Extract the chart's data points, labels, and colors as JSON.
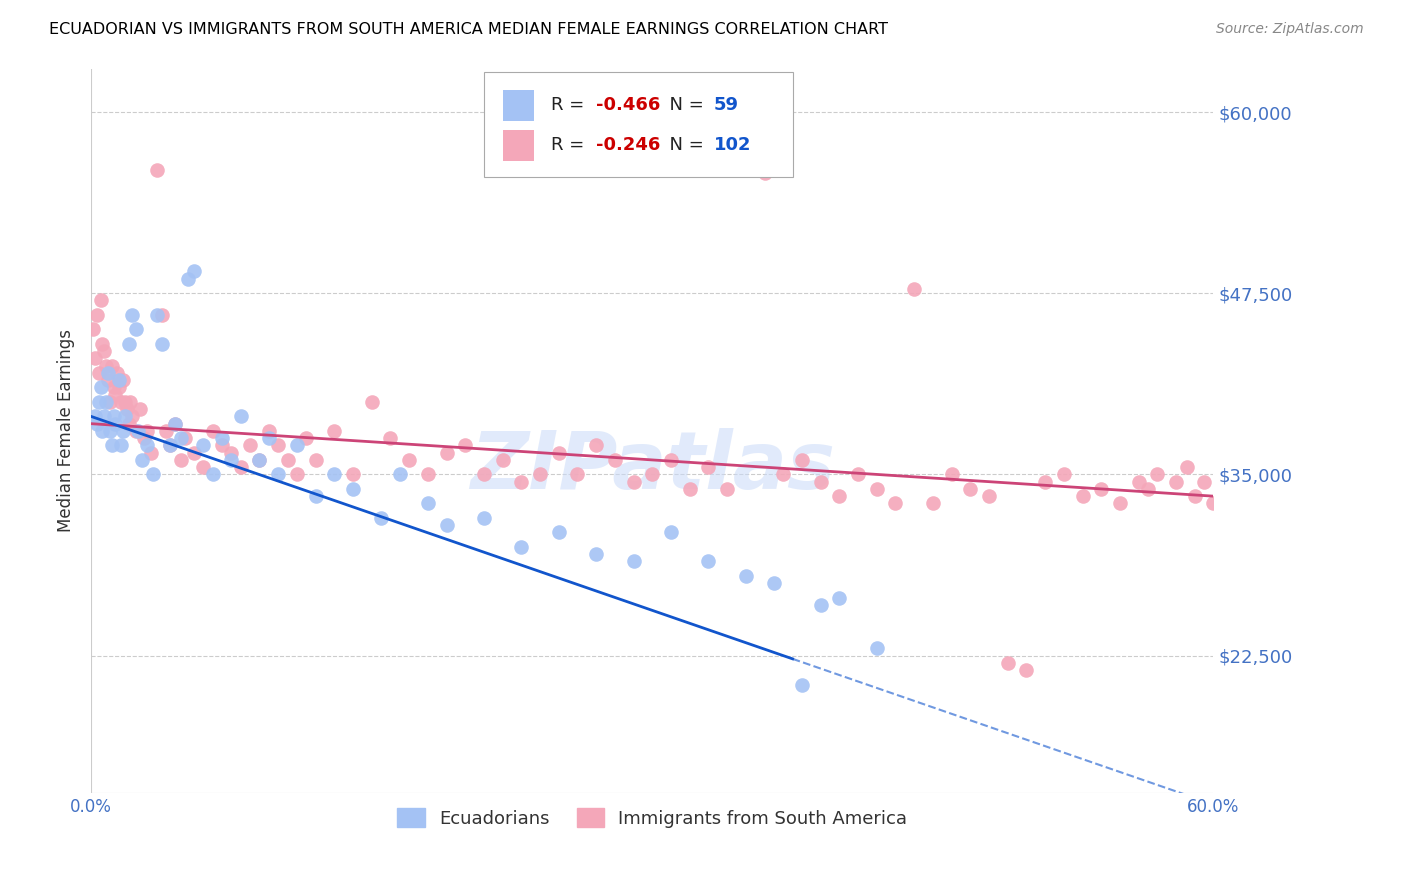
{
  "title": "ECUADORIAN VS IMMIGRANTS FROM SOUTH AMERICA MEDIAN FEMALE EARNINGS CORRELATION CHART",
  "source": "Source: ZipAtlas.com",
  "ylabel": "Median Female Earnings",
  "xlim": [
    0.0,
    0.6
  ],
  "ylim": [
    13000,
    63000
  ],
  "yticks": [
    22500,
    35000,
    47500,
    60000
  ],
  "ytick_labels": [
    "$22,500",
    "$35,000",
    "$47,500",
    "$60,000"
  ],
  "series1_name": "Ecuadorians",
  "series1_R": -0.466,
  "series1_N": 59,
  "series1_color": "#a4c2f4",
  "series1_line_color": "#1155cc",
  "series2_name": "Immigrants from South America",
  "series2_R": -0.246,
  "series2_N": 102,
  "series2_color": "#f4a7b9",
  "series2_line_color": "#cc4477",
  "legend_R_color": "#cc0000",
  "legend_N_color": "#1155cc",
  "background_color": "#ffffff",
  "grid_color": "#cccccc",
  "title_color": "#000000",
  "tick_label_color": "#4472c4",
  "watermark": "ZIPatlas",
  "watermark_color": "#c9daf8"
}
